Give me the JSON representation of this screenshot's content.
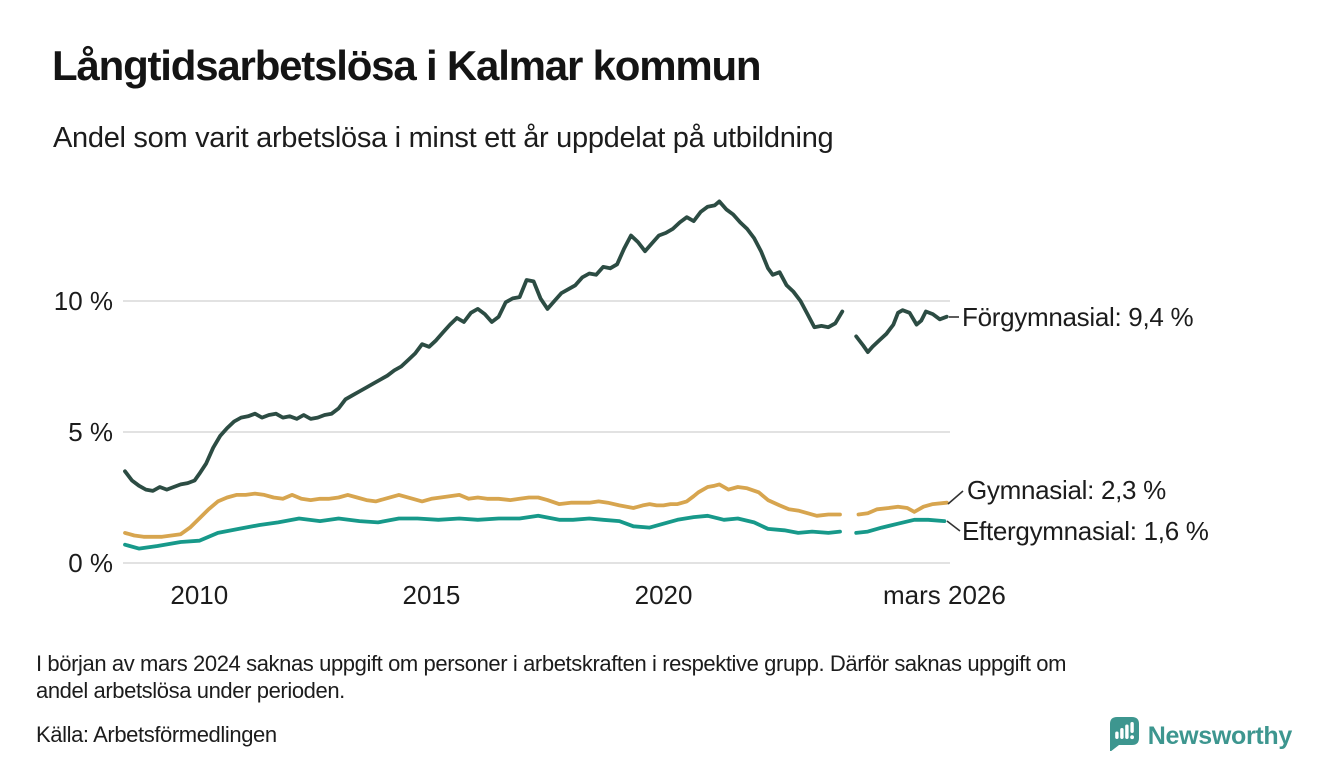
{
  "title": "Långtidsarbetslösa i Kalmar kommun",
  "subtitle": "Andel som varit arbetslösa i minst ett år uppdelat på utbildning",
  "footnote_line1": "I början av mars 2024 saknas uppgift om personer i arbetskraften i respektive grupp. Därför saknas uppgift om",
  "footnote_line2": "andel arbetslösa under perioden.",
  "source": "Källa: Arbetsförmedlingen",
  "logo": {
    "text": "Newsworthy",
    "color": "#3D968F",
    "icon": "newsworthy-chart-bubble-icon"
  },
  "colors": {
    "background": "#ffffff",
    "text": "#1c1c1c",
    "gridline": "#e2e2e2",
    "connector": "#333333",
    "forgymnasial": "#2C4C43",
    "gymnasial": "#D7A54F",
    "eftergymnasial": "#17998A"
  },
  "chart_data": {
    "type": "line",
    "title": "Långtidsarbetslösa i Kalmar kommun",
    "subtitle": "Andel som varit arbetslösa i minst ett år uppdelat på utbildning",
    "unit": "%",
    "x_axis": {
      "domain": [
        2008.4,
        2026.17
      ],
      "ticks": [
        {
          "x": 2010,
          "label": "2010"
        },
        {
          "x": 2015,
          "label": "2015"
        },
        {
          "x": 2020,
          "label": "2020"
        },
        {
          "x": 2026.05,
          "label": "mars 2026"
        }
      ]
    },
    "y_axis": {
      "domain": [
        0,
        14.2
      ],
      "ticks": [
        {
          "y": 0,
          "label": "0 %"
        },
        {
          "y": 5,
          "label": "5 %"
        },
        {
          "y": 10,
          "label": "10 %"
        }
      ]
    },
    "gap_note": "data missing around mars 2024 (null separates segments)",
    "series": [
      {
        "name": "Förgymnasial",
        "color": "#2C4C43",
        "end_value": "9,4 %",
        "end_label": "Förgymnasial: 9,4 %",
        "points": [
          [
            2008.4,
            3.5
          ],
          [
            2008.55,
            3.15
          ],
          [
            2008.7,
            2.95
          ],
          [
            2008.85,
            2.8
          ],
          [
            2009.0,
            2.75
          ],
          [
            2009.15,
            2.9
          ],
          [
            2009.3,
            2.8
          ],
          [
            2009.45,
            2.9
          ],
          [
            2009.6,
            3.0
          ],
          [
            2009.75,
            3.05
          ],
          [
            2009.9,
            3.15
          ],
          [
            2010.0,
            3.4
          ],
          [
            2010.15,
            3.8
          ],
          [
            2010.3,
            4.4
          ],
          [
            2010.45,
            4.85
          ],
          [
            2010.6,
            5.15
          ],
          [
            2010.75,
            5.4
          ],
          [
            2010.9,
            5.55
          ],
          [
            2011.05,
            5.6
          ],
          [
            2011.2,
            5.7
          ],
          [
            2011.35,
            5.55
          ],
          [
            2011.5,
            5.65
          ],
          [
            2011.65,
            5.7
          ],
          [
            2011.8,
            5.55
          ],
          [
            2011.95,
            5.6
          ],
          [
            2012.1,
            5.5
          ],
          [
            2012.25,
            5.65
          ],
          [
            2012.4,
            5.5
          ],
          [
            2012.55,
            5.55
          ],
          [
            2012.7,
            5.65
          ],
          [
            2012.85,
            5.7
          ],
          [
            2013.0,
            5.9
          ],
          [
            2013.15,
            6.25
          ],
          [
            2013.3,
            6.4
          ],
          [
            2013.45,
            6.55
          ],
          [
            2013.6,
            6.7
          ],
          [
            2013.75,
            6.85
          ],
          [
            2013.9,
            7.0
          ],
          [
            2014.05,
            7.15
          ],
          [
            2014.2,
            7.35
          ],
          [
            2014.35,
            7.5
          ],
          [
            2014.5,
            7.75
          ],
          [
            2014.65,
            8.0
          ],
          [
            2014.8,
            8.35
          ],
          [
            2014.95,
            8.25
          ],
          [
            2015.1,
            8.5
          ],
          [
            2015.25,
            8.8
          ],
          [
            2015.4,
            9.1
          ],
          [
            2015.55,
            9.35
          ],
          [
            2015.7,
            9.2
          ],
          [
            2015.85,
            9.55
          ],
          [
            2016.0,
            9.7
          ],
          [
            2016.15,
            9.5
          ],
          [
            2016.3,
            9.2
          ],
          [
            2016.45,
            9.4
          ],
          [
            2016.6,
            9.95
          ],
          [
            2016.75,
            10.1
          ],
          [
            2016.9,
            10.15
          ],
          [
            2017.05,
            10.8
          ],
          [
            2017.2,
            10.75
          ],
          [
            2017.35,
            10.1
          ],
          [
            2017.5,
            9.7
          ],
          [
            2017.65,
            10.0
          ],
          [
            2017.8,
            10.3
          ],
          [
            2017.95,
            10.45
          ],
          [
            2018.1,
            10.6
          ],
          [
            2018.25,
            10.9
          ],
          [
            2018.4,
            11.05
          ],
          [
            2018.55,
            11.0
          ],
          [
            2018.7,
            11.3
          ],
          [
            2018.85,
            11.25
          ],
          [
            2019.0,
            11.4
          ],
          [
            2019.15,
            12.0
          ],
          [
            2019.3,
            12.5
          ],
          [
            2019.45,
            12.25
          ],
          [
            2019.6,
            11.9
          ],
          [
            2019.75,
            12.2
          ],
          [
            2019.9,
            12.5
          ],
          [
            2020.05,
            12.6
          ],
          [
            2020.2,
            12.75
          ],
          [
            2020.35,
            13.0
          ],
          [
            2020.5,
            13.2
          ],
          [
            2020.65,
            13.05
          ],
          [
            2020.8,
            13.4
          ],
          [
            2020.95,
            13.6
          ],
          [
            2021.1,
            13.65
          ],
          [
            2021.2,
            13.8
          ],
          [
            2021.35,
            13.5
          ],
          [
            2021.5,
            13.3
          ],
          [
            2021.65,
            13.0
          ],
          [
            2021.8,
            12.75
          ],
          [
            2021.95,
            12.4
          ],
          [
            2022.1,
            11.9
          ],
          [
            2022.25,
            11.25
          ],
          [
            2022.35,
            11.0
          ],
          [
            2022.5,
            11.1
          ],
          [
            2022.65,
            10.6
          ],
          [
            2022.8,
            10.35
          ],
          [
            2022.95,
            10.0
          ],
          [
            2023.1,
            9.5
          ],
          [
            2023.25,
            9.0
          ],
          [
            2023.4,
            9.05
          ],
          [
            2023.55,
            9.0
          ],
          [
            2023.7,
            9.15
          ],
          [
            2023.85,
            9.6
          ],
          null,
          [
            2024.15,
            8.65
          ],
          [
            2024.3,
            8.3
          ],
          [
            2024.4,
            8.05
          ],
          [
            2024.5,
            8.25
          ],
          [
            2024.65,
            8.5
          ],
          [
            2024.8,
            8.75
          ],
          [
            2024.95,
            9.1
          ],
          [
            2025.05,
            9.55
          ],
          [
            2025.15,
            9.65
          ],
          [
            2025.3,
            9.55
          ],
          [
            2025.45,
            9.1
          ],
          [
            2025.55,
            9.25
          ],
          [
            2025.65,
            9.6
          ],
          [
            2025.8,
            9.5
          ],
          [
            2025.95,
            9.3
          ],
          [
            2026.1,
            9.4
          ]
        ]
      },
      {
        "name": "Gymnasial",
        "color": "#D7A54F",
        "end_value": "2,3 %",
        "end_label": "Gymnasial: 2,3 %",
        "points": [
          [
            2008.4,
            1.15
          ],
          [
            2008.6,
            1.05
          ],
          [
            2008.8,
            1.0
          ],
          [
            2009.0,
            1.0
          ],
          [
            2009.2,
            1.0
          ],
          [
            2009.4,
            1.05
          ],
          [
            2009.6,
            1.1
          ],
          [
            2009.8,
            1.35
          ],
          [
            2010.0,
            1.7
          ],
          [
            2010.2,
            2.05
          ],
          [
            2010.4,
            2.35
          ],
          [
            2010.6,
            2.5
          ],
          [
            2010.8,
            2.6
          ],
          [
            2011.0,
            2.6
          ],
          [
            2011.2,
            2.65
          ],
          [
            2011.4,
            2.6
          ],
          [
            2011.6,
            2.5
          ],
          [
            2011.8,
            2.45
          ],
          [
            2012.0,
            2.6
          ],
          [
            2012.2,
            2.45
          ],
          [
            2012.4,
            2.4
          ],
          [
            2012.6,
            2.45
          ],
          [
            2012.8,
            2.45
          ],
          [
            2013.0,
            2.5
          ],
          [
            2013.2,
            2.6
          ],
          [
            2013.4,
            2.5
          ],
          [
            2013.6,
            2.4
          ],
          [
            2013.8,
            2.35
          ],
          [
            2014.0,
            2.45
          ],
          [
            2014.3,
            2.6
          ],
          [
            2014.6,
            2.45
          ],
          [
            2014.8,
            2.35
          ],
          [
            2015.0,
            2.45
          ],
          [
            2015.2,
            2.5
          ],
          [
            2015.6,
            2.6
          ],
          [
            2015.8,
            2.45
          ],
          [
            2016.0,
            2.5
          ],
          [
            2016.2,
            2.45
          ],
          [
            2016.45,
            2.45
          ],
          [
            2016.7,
            2.4
          ],
          [
            2016.9,
            2.45
          ],
          [
            2017.1,
            2.5
          ],
          [
            2017.3,
            2.5
          ],
          [
            2017.5,
            2.4
          ],
          [
            2017.75,
            2.25
          ],
          [
            2018.0,
            2.3
          ],
          [
            2018.2,
            2.3
          ],
          [
            2018.4,
            2.3
          ],
          [
            2018.6,
            2.35
          ],
          [
            2018.8,
            2.3
          ],
          [
            2019.05,
            2.2
          ],
          [
            2019.35,
            2.1
          ],
          [
            2019.55,
            2.2
          ],
          [
            2019.7,
            2.25
          ],
          [
            2019.85,
            2.2
          ],
          [
            2020.0,
            2.2
          ],
          [
            2020.15,
            2.25
          ],
          [
            2020.3,
            2.25
          ],
          [
            2020.5,
            2.35
          ],
          [
            2020.65,
            2.55
          ],
          [
            2020.75,
            2.7
          ],
          [
            2020.95,
            2.9
          ],
          [
            2021.1,
            2.95
          ],
          [
            2021.2,
            3.0
          ],
          [
            2021.4,
            2.8
          ],
          [
            2021.6,
            2.9
          ],
          [
            2021.8,
            2.85
          ],
          [
            2022.05,
            2.7
          ],
          [
            2022.25,
            2.4
          ],
          [
            2022.5,
            2.2
          ],
          [
            2022.7,
            2.05
          ],
          [
            2022.9,
            2.0
          ],
          [
            2023.1,
            1.9
          ],
          [
            2023.3,
            1.8
          ],
          [
            2023.55,
            1.85
          ],
          [
            2023.8,
            1.85
          ],
          null,
          [
            2024.2,
            1.85
          ],
          [
            2024.4,
            1.9
          ],
          [
            2024.6,
            2.05
          ],
          [
            2024.85,
            2.1
          ],
          [
            2025.05,
            2.15
          ],
          [
            2025.25,
            2.1
          ],
          [
            2025.4,
            1.95
          ],
          [
            2025.6,
            2.15
          ],
          [
            2025.8,
            2.25
          ],
          [
            2026.1,
            2.3
          ]
        ]
      },
      {
        "name": "Eftergymnasial",
        "color": "#17998A",
        "end_value": "1,6 %",
        "end_label": "Eftergymnasial: 1,6 %",
        "points": [
          [
            2008.4,
            0.7
          ],
          [
            2008.7,
            0.55
          ],
          [
            2009.1,
            0.65
          ],
          [
            2009.6,
            0.8
          ],
          [
            2010.0,
            0.85
          ],
          [
            2010.4,
            1.15
          ],
          [
            2010.85,
            1.3
          ],
          [
            2011.3,
            1.45
          ],
          [
            2011.7,
            1.55
          ],
          [
            2012.15,
            1.7
          ],
          [
            2012.6,
            1.6
          ],
          [
            2013.0,
            1.7
          ],
          [
            2013.45,
            1.6
          ],
          [
            2013.85,
            1.55
          ],
          [
            2014.3,
            1.7
          ],
          [
            2014.7,
            1.7
          ],
          [
            2015.15,
            1.65
          ],
          [
            2015.6,
            1.7
          ],
          [
            2016.0,
            1.65
          ],
          [
            2016.45,
            1.7
          ],
          [
            2016.9,
            1.7
          ],
          [
            2017.3,
            1.8
          ],
          [
            2017.75,
            1.65
          ],
          [
            2018.05,
            1.65
          ],
          [
            2018.4,
            1.7
          ],
          [
            2018.7,
            1.65
          ],
          [
            2019.05,
            1.6
          ],
          [
            2019.35,
            1.4
          ],
          [
            2019.7,
            1.35
          ],
          [
            2020.0,
            1.5
          ],
          [
            2020.3,
            1.65
          ],
          [
            2020.65,
            1.75
          ],
          [
            2020.95,
            1.8
          ],
          [
            2021.3,
            1.65
          ],
          [
            2021.6,
            1.7
          ],
          [
            2021.95,
            1.55
          ],
          [
            2022.25,
            1.3
          ],
          [
            2022.6,
            1.25
          ],
          [
            2022.9,
            1.15
          ],
          [
            2023.2,
            1.2
          ],
          [
            2023.55,
            1.15
          ],
          [
            2023.8,
            1.2
          ],
          null,
          [
            2024.15,
            1.15
          ],
          [
            2024.4,
            1.2
          ],
          [
            2024.7,
            1.35
          ],
          [
            2025.05,
            1.5
          ],
          [
            2025.4,
            1.65
          ],
          [
            2025.7,
            1.65
          ],
          [
            2026.05,
            1.6
          ]
        ]
      }
    ],
    "legend_position": "end-of-line labels, right side",
    "grid": "horizontal only"
  }
}
